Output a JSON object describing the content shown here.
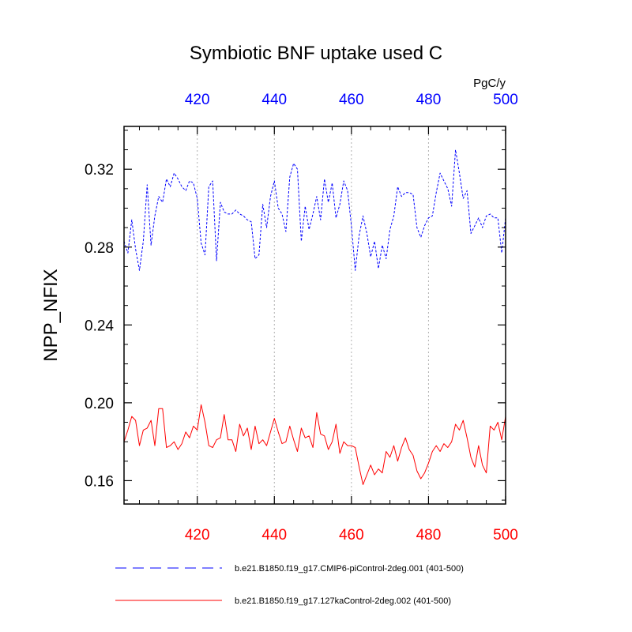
{
  "chart_data": {
    "type": "line",
    "title": "Symbiotic BNF uptake used C",
    "units": "PgC/y",
    "ylabel": "NPP_NFIX",
    "xlim": [
      401,
      500
    ],
    "ylim": [
      0.148,
      0.342
    ],
    "x_ticks": [
      "420",
      "440",
      "460",
      "480",
      "500"
    ],
    "y_ticks": [
      "0.16",
      "0.20",
      "0.24",
      "0.28",
      "0.32"
    ],
    "grid": "vertical dotted lines at major x ticks",
    "x": [
      401,
      402,
      403,
      404,
      405,
      406,
      407,
      408,
      409,
      410,
      411,
      412,
      413,
      414,
      415,
      416,
      417,
      418,
      419,
      420,
      421,
      422,
      423,
      424,
      425,
      426,
      427,
      428,
      429,
      430,
      431,
      432,
      433,
      434,
      435,
      436,
      437,
      438,
      439,
      440,
      441,
      442,
      443,
      444,
      445,
      446,
      447,
      448,
      449,
      450,
      451,
      452,
      453,
      454,
      455,
      456,
      457,
      458,
      459,
      460,
      461,
      462,
      463,
      464,
      465,
      466,
      467,
      468,
      469,
      470,
      471,
      472,
      473,
      474,
      475,
      476,
      477,
      478,
      479,
      480,
      481,
      482,
      483,
      484,
      485,
      486,
      487,
      488,
      489,
      490,
      491,
      492,
      493,
      494,
      495,
      496,
      497,
      498,
      499,
      500
    ],
    "series": [
      {
        "name": "b.e21.B1850.f19_g17.CMIP6-piControl-2deg.001 (401-500)",
        "color": "#0000ff",
        "style": "dashed",
        "axis": "top",
        "values": [
          0.283,
          0.277,
          0.294,
          0.279,
          0.268,
          0.283,
          0.312,
          0.281,
          0.296,
          0.306,
          0.303,
          0.315,
          0.311,
          0.318,
          0.315,
          0.311,
          0.309,
          0.314,
          0.313,
          0.305,
          0.282,
          0.276,
          0.311,
          0.314,
          0.273,
          0.303,
          0.298,
          0.297,
          0.297,
          0.299,
          0.297,
          0.296,
          0.294,
          0.293,
          0.274,
          0.276,
          0.302,
          0.29,
          0.306,
          0.314,
          0.3,
          0.297,
          0.288,
          0.316,
          0.323,
          0.32,
          0.283,
          0.301,
          0.289,
          0.297,
          0.306,
          0.294,
          0.315,
          0.303,
          0.313,
          0.295,
          0.302,
          0.314,
          0.309,
          0.291,
          0.268,
          0.286,
          0.296,
          0.287,
          0.275,
          0.283,
          0.269,
          0.281,
          0.274,
          0.289,
          0.296,
          0.311,
          0.306,
          0.308,
          0.308,
          0.307,
          0.29,
          0.285,
          0.291,
          0.295,
          0.296,
          0.308,
          0.318,
          0.314,
          0.31,
          0.301,
          0.33,
          0.318,
          0.305,
          0.309,
          0.287,
          0.291,
          0.295,
          0.29,
          0.296,
          0.297,
          0.295,
          0.295,
          0.277,
          0.295
        ]
      },
      {
        "name": "b.e21.B1850.f19_g17.127kaControl-2deg.002 (401-500)",
        "color": "#ff0000",
        "style": "solid",
        "axis": "bottom",
        "values": [
          0.18,
          0.186,
          0.193,
          0.191,
          0.178,
          0.186,
          0.187,
          0.191,
          0.178,
          0.197,
          0.197,
          0.177,
          0.178,
          0.18,
          0.176,
          0.179,
          0.185,
          0.182,
          0.188,
          0.186,
          0.199,
          0.19,
          0.178,
          0.177,
          0.181,
          0.182,
          0.194,
          0.181,
          0.181,
          0.175,
          0.189,
          0.183,
          0.187,
          0.176,
          0.188,
          0.179,
          0.181,
          0.178,
          0.185,
          0.192,
          0.185,
          0.179,
          0.18,
          0.188,
          0.181,
          0.175,
          0.187,
          0.182,
          0.183,
          0.177,
          0.195,
          0.184,
          0.183,
          0.176,
          0.18,
          0.189,
          0.174,
          0.18,
          0.178,
          0.178,
          0.177,
          0.167,
          0.158,
          0.163,
          0.168,
          0.163,
          0.166,
          0.164,
          0.175,
          0.172,
          0.178,
          0.17,
          0.177,
          0.182,
          0.176,
          0.173,
          0.165,
          0.161,
          0.164,
          0.169,
          0.175,
          0.178,
          0.175,
          0.179,
          0.177,
          0.18,
          0.189,
          0.186,
          0.191,
          0.182,
          0.172,
          0.167,
          0.178,
          0.168,
          0.164,
          0.188,
          0.186,
          0.19,
          0.181,
          0.193
        ]
      }
    ]
  }
}
